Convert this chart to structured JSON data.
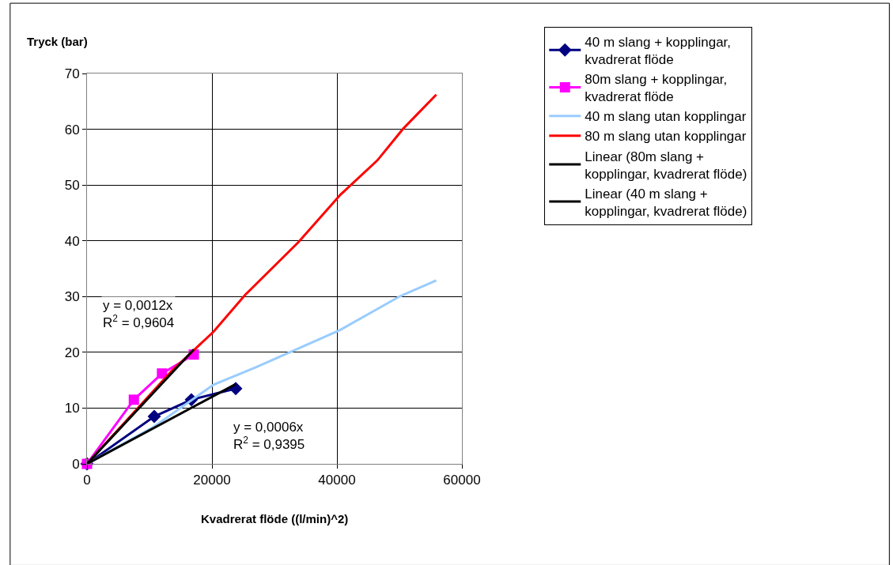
{
  "chart_data": {
    "type": "line",
    "xlabel": "Kvadrerat flöde ((l/min)^2)",
    "ylabel": "Tryck (bar)",
    "xlim": [
      0,
      60000
    ],
    "xticks": [
      0,
      20000,
      40000,
      60000
    ],
    "ylim": [
      0,
      70
    ],
    "yticks": [
      0,
      10,
      20,
      30,
      40,
      50,
      60,
      70
    ],
    "grid": true,
    "legend": "right",
    "series": [
      {
        "name": "40 m slang + kopplingar, kvadrerat flöde",
        "color": "#000080",
        "marker": "diamond",
        "x": [
          0,
          10760,
          16700,
          23800
        ],
        "values": [
          0,
          8.5,
          11.5,
          13.5
        ]
      },
      {
        "name": "80m slang + kopplingar, kvadrerat flöde",
        "color": "#ff00ff",
        "marker": "square",
        "x": [
          0,
          7500,
          12000,
          17090
        ],
        "values": [
          0,
          11.5,
          16.2,
          19.6
        ]
      },
      {
        "name": "40 m slang utan kopplingar",
        "color": "#99ccff",
        "marker": "none",
        "x": [
          0,
          10760,
          20250,
          27000,
          40500,
          50000,
          55900
        ],
        "values": [
          0,
          6.7,
          14.2,
          17.3,
          24.0,
          30.0,
          32.9
        ]
      },
      {
        "name": "80 m slang utan kopplingar",
        "color": "#ff0000",
        "marker": "none",
        "x": [
          0,
          13500,
          20250,
          25300,
          33800,
          40500,
          46450,
          50600,
          55900
        ],
        "values": [
          0,
          16.6,
          23.7,
          30.3,
          39.7,
          48.2,
          54.4,
          60.1,
          66.2
        ]
      },
      {
        "name": "Linear (80m slang + kopplingar, kvadrerat flöde)",
        "color": "#000000",
        "marker": "none",
        "x": [
          0,
          17090
        ],
        "values": [
          0,
          20.5
        ]
      },
      {
        "name": "Linear (40 m slang + kopplingar, kvadrerat flöde)",
        "color": "#000000",
        "marker": "none",
        "x": [
          0,
          23800
        ],
        "values": [
          0,
          14.3
        ]
      }
    ],
    "annotations": [
      "y = 0,0012x\nR$^{2}$ = 0,9604",
      "y = 0,0006x\nR$^{2}$ = 0,9395"
    ]
  }
}
